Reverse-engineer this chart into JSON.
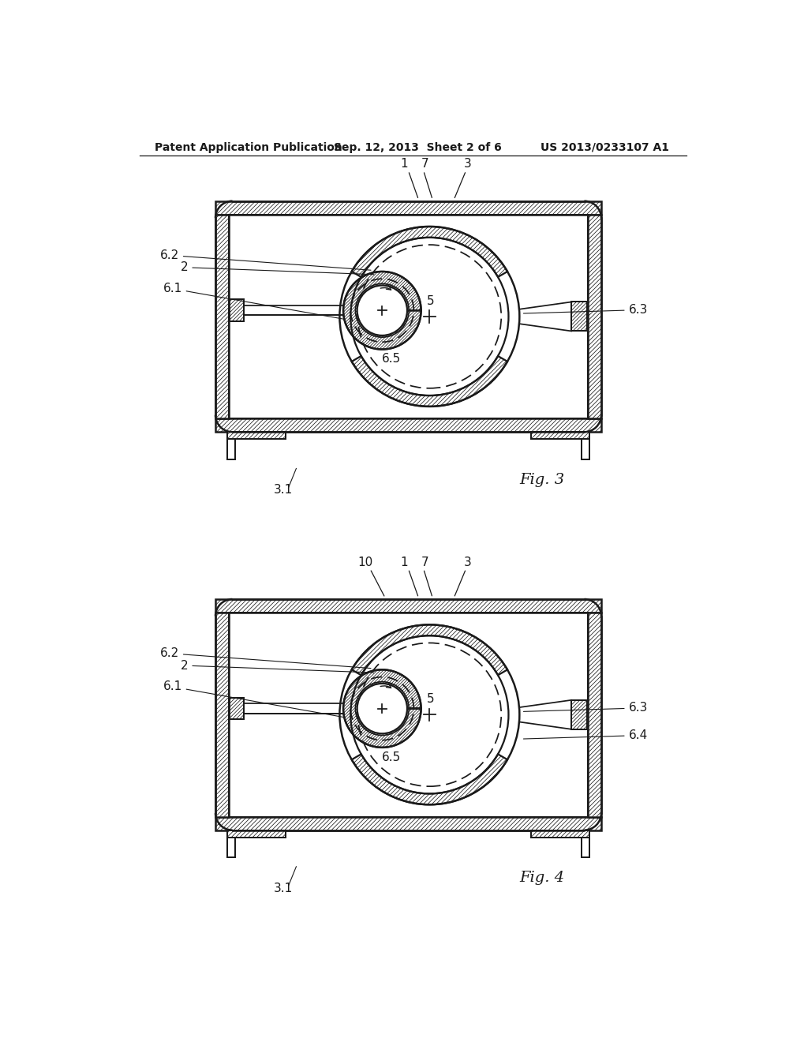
{
  "bg_color": "#ffffff",
  "line_color": "#1a1a1a",
  "header_left": "Patent Application Publication",
  "header_mid": "Sep. 12, 2013  Sheet 2 of 6",
  "header_right": "US 2013/0233107 A1",
  "fig3_label": "Fig. 3",
  "fig4_label": "Fig. 4",
  "fig3_31": "3.1",
  "fig4_31": "3.1",
  "lw_main": 1.8,
  "lw_thin": 1.0,
  "lw_hatch": 0.55,
  "hatch_sp": 7,
  "font_label": 11,
  "font_fig": 14
}
